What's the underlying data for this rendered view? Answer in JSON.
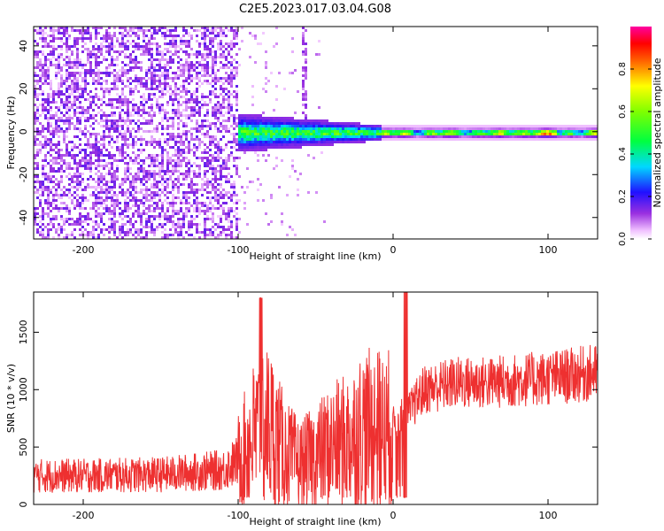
{
  "title": "C2E5.2023.017.03.04.G08",
  "colors": {
    "snr_line": "#ee3030",
    "axis": "#000000"
  },
  "chart_data": [
    {
      "type": "heatmap",
      "xlabel": "Height of straight line (km)",
      "ylabel": "Frequency (Hz)",
      "xlim": [
        -232,
        132
      ],
      "ylim": [
        -50,
        49
      ],
      "xticks": [
        "-200",
        "-100",
        "0",
        "100"
      ],
      "yticks": [
        "-40",
        "-20",
        "0",
        "20",
        "40"
      ],
      "colorbar": {
        "label": "Normalized spectral amplitude",
        "range": [
          0,
          1
        ],
        "ticks": [
          "0.0",
          "0.2",
          "0.4",
          "0.6",
          "0.8"
        ],
        "colormap": "rainbow (magenta-purple-blue-cyan-green-yellow-red-magenta)"
      },
      "regions": [
        {
          "x_range": [
            -232,
            -100
          ],
          "freq_range": [
            -50,
            49
          ],
          "amplitude": 0.1,
          "description": "broadband noise"
        },
        {
          "x_range": [
            -100,
            -8
          ],
          "freq_range": [
            -8,
            6
          ],
          "amplitude": 0.35,
          "description": "spreading signal"
        },
        {
          "x_range": [
            -8,
            132
          ],
          "freq_range": [
            -3,
            3
          ],
          "amplitude": 0.6,
          "description": "narrow carrier line near 0 Hz"
        }
      ]
    },
    {
      "type": "line",
      "xlabel": "Height of straight line (km)",
      "ylabel": "SNR (10 * v/v)",
      "xlim": [
        -232,
        132
      ],
      "ylim": [
        0,
        1850
      ],
      "xticks": [
        "-200",
        "-100",
        "0",
        "100"
      ],
      "yticks": [
        "0",
        "500",
        "1000",
        "1500"
      ],
      "series": [
        {
          "x": [
            -232,
            -200,
            -150,
            -110,
            -100,
            -90,
            -80,
            -70,
            -60,
            -50,
            -40,
            -30,
            -20,
            -10,
            -5,
            0,
            5,
            10,
            20,
            40,
            60,
            80,
            100,
            120,
            132
          ],
          "y": [
            250,
            250,
            260,
            300,
            380,
            600,
            680,
            450,
            350,
            420,
            500,
            550,
            650,
            650,
            620,
            700,
            750,
            800,
            1000,
            1060,
            1060,
            1080,
            1100,
            1130,
            1150
          ]
        }
      ]
    }
  ]
}
